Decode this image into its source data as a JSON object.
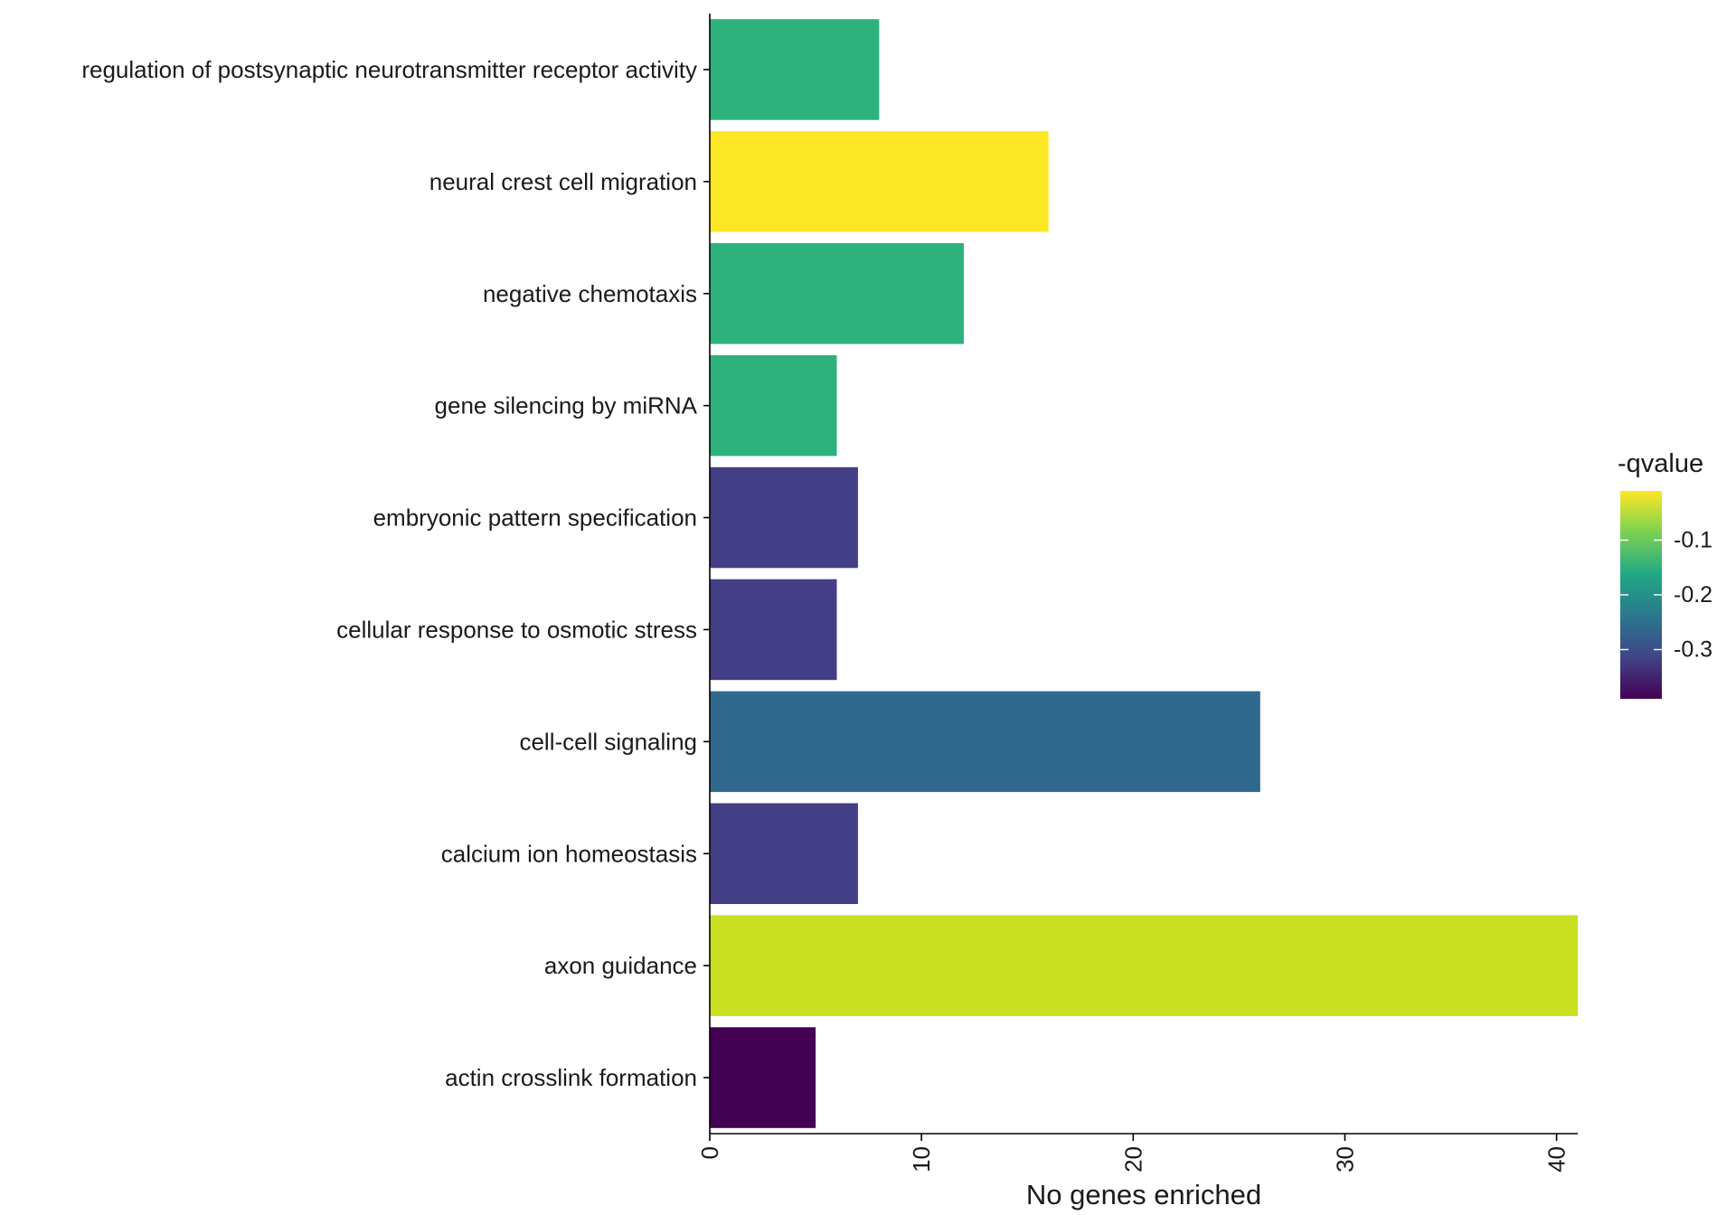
{
  "chart_data": {
    "type": "bar",
    "orientation": "horizontal",
    "categories": [
      "regulation of postsynaptic neurotransmitter receptor activity",
      "neural crest cell migration",
      "negative chemotaxis",
      "gene silencing by miRNA",
      "embryonic pattern specification",
      "cellular response to osmotic stress",
      "cell-cell signaling",
      "calcium ion homeostasis",
      "axon guidance",
      "actin crosslink formation"
    ],
    "values": [
      8,
      16,
      12,
      6,
      7,
      6,
      26,
      7,
      41,
      5
    ],
    "colors": [
      "#2db27d",
      "#fde725",
      "#2db27d",
      "#2db27d",
      "#433e85",
      "#433e85",
      "#31688e",
      "#433e85",
      "#c8e020",
      "#440154"
    ],
    "xlabel": "No genes enriched",
    "ylabel": "",
    "xlim": [
      0,
      41
    ],
    "xticks": [
      0,
      10,
      20,
      30,
      40
    ],
    "xtick_labels": [
      "0",
      "10",
      "20",
      "30",
      "40"
    ],
    "grid": false,
    "legend": {
      "title": "-qvalue",
      "placement": "right",
      "type": "colorbar",
      "range": [
        -0.39,
        -0.01
      ],
      "ticks": [
        -0.3,
        -0.2,
        -0.1
      ],
      "tick_labels": [
        "-0.3",
        "-0.2",
        "-0.1"
      ],
      "colormap": [
        "#440154",
        "#414487",
        "#2a788e",
        "#22a884",
        "#7ad151",
        "#fde725"
      ]
    }
  }
}
